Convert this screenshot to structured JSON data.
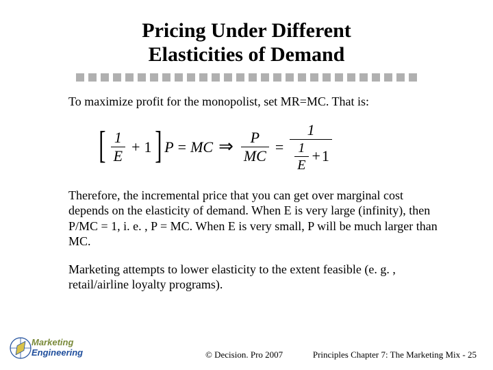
{
  "title": {
    "line1": "Pricing Under Different",
    "line2": "Elasticities of Demand",
    "fontsize": 30,
    "fontweight": "bold",
    "color": "#000000"
  },
  "divider": {
    "square_count": 28,
    "square_size": 12,
    "gap": 6,
    "color": "#b0b0b0"
  },
  "paragraphs": {
    "p1": "To maximize profit for the monopolist, set MR=MC.  That is:",
    "p2": "Therefore, the incremental price that you can get over marginal cost depends on the elasticity of demand.  When E is very large (infinity), then P/MC = 1, i. e. , P = MC.  When E is very small, P will be much larger than MC.",
    "p3": "Marketing attempts to lower elasticity to the extent feasible (e. g. , retail/airline loyalty programs).",
    "fontsize": 18,
    "color": "#000000"
  },
  "formula": {
    "lhs_frac_num": "1",
    "lhs_frac_den": "E",
    "lhs_plus": "+",
    "lhs_one": "1",
    "lhs_var": "P",
    "eq1": "=",
    "mc": "MC",
    "implies": "⇒",
    "rhs_frac1_num": "P",
    "rhs_frac1_den": "MC",
    "eq2": "=",
    "rhs_frac2_num": "1",
    "rhs_inner_num": "1",
    "rhs_inner_den": "E",
    "rhs_plus": "+",
    "rhs_one": "1",
    "fontsize": 22
  },
  "logo": {
    "line1": "Marketing",
    "line2": "Engineering",
    "line1_color": "#7a8a3a",
    "line2_color": "#1f4e9c",
    "compass_stroke": "#1f4e9c",
    "compass_fill": "#d9c24a"
  },
  "footer": {
    "copyright": "©  Decision. Pro 2007",
    "pagenum": "Principles Chapter 7: The Marketing Mix -  25",
    "fontsize": 13,
    "color": "#000000"
  },
  "background_color": "#ffffff"
}
